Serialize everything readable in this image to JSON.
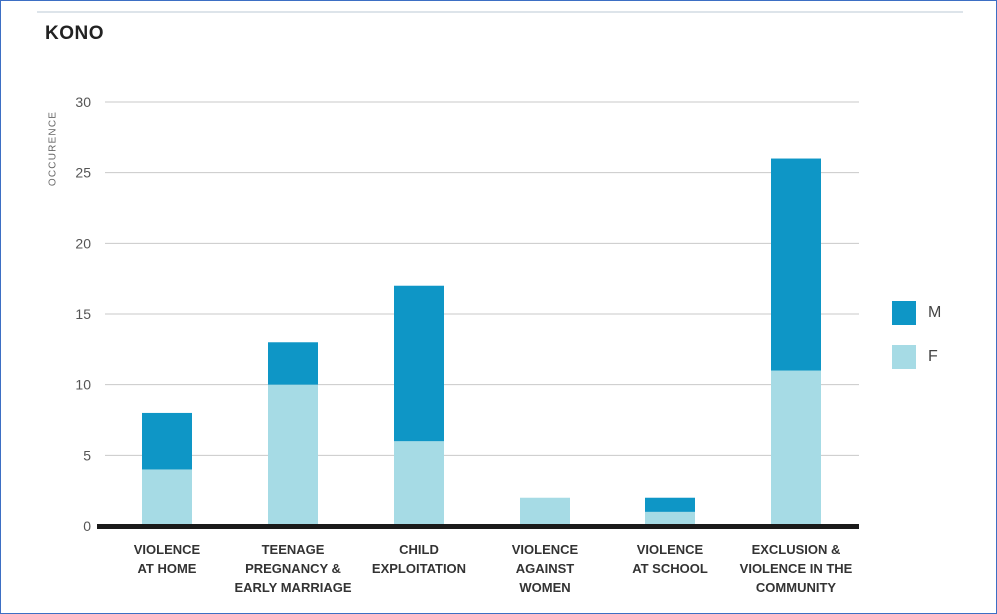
{
  "chart_data": {
    "type": "bar",
    "stacked": true,
    "title": "KONO",
    "ylabel": "OCCURENCE",
    "ylim": [
      0,
      30
    ],
    "yticks": [
      "0",
      "5",
      "10",
      "15",
      "20",
      "25",
      "30"
    ],
    "grid": true,
    "legend_position": "right",
    "categories": [
      [
        "VIOLENCE",
        "AT HOME"
      ],
      [
        "TEENAGE",
        "PREGNANCY &",
        "EARLY MARRIAGE"
      ],
      [
        "CHILD",
        "EXPLOITATION"
      ],
      [
        "VIOLENCE",
        "AGAINST",
        "WOMEN"
      ],
      [
        "VIOLENCE",
        "AT SCHOOL"
      ],
      [
        "EXCLUSION &",
        "VIOLENCE IN THE",
        "COMMUNITY"
      ]
    ],
    "series": [
      {
        "name": "F",
        "color": "#a6dbe5",
        "values": [
          4,
          10,
          6,
          2,
          1,
          11
        ]
      },
      {
        "name": "M",
        "color": "#0e96c6",
        "values": [
          4,
          3,
          11,
          0,
          1,
          15
        ]
      }
    ],
    "legend": [
      {
        "name": "M",
        "color": "#0e96c6"
      },
      {
        "name": "F",
        "color": "#a6dbe5"
      }
    ]
  }
}
